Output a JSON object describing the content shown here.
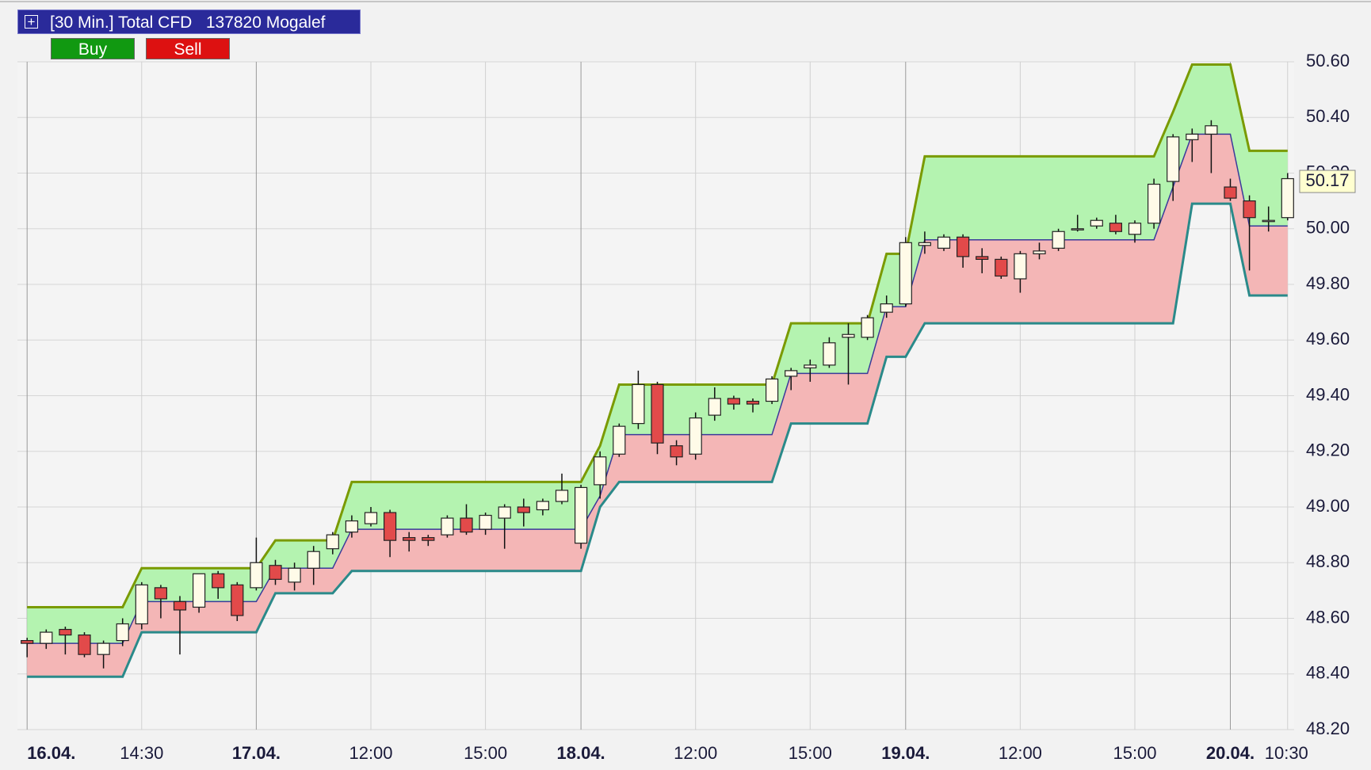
{
  "header": {
    "title": "[30 Min.] Total CFD   137820 Mogalef",
    "buy": "Buy",
    "sell": "Sell"
  },
  "chart_data": {
    "type": "candlestick",
    "categories": [
      "16.04.",
      null,
      null,
      null,
      null,
      null,
      "14:30",
      null,
      null,
      null,
      null,
      null,
      "17.04.",
      null,
      null,
      null,
      null,
      null,
      "12:00",
      null,
      null,
      null,
      null,
      null,
      "15:00",
      null,
      null,
      null,
      null,
      "18.04.",
      null,
      null,
      null,
      null,
      null,
      "12:00",
      null,
      null,
      null,
      null,
      null,
      "15:00",
      null,
      null,
      null,
      null,
      "19.04.",
      null,
      null,
      null,
      null,
      null,
      "12:00",
      null,
      null,
      null,
      null,
      null,
      "15:00",
      null,
      null,
      null,
      null,
      "20.04.",
      null,
      null,
      "10:30"
    ],
    "open": [
      48.52,
      48.51,
      48.56,
      48.54,
      48.47,
      48.52,
      48.58,
      48.71,
      48.66,
      48.64,
      48.76,
      48.72,
      48.71,
      48.79,
      48.73,
      48.78,
      48.85,
      48.91,
      48.94,
      48.98,
      48.89,
      48.89,
      48.9,
      48.96,
      48.92,
      48.96,
      49.0,
      48.99,
      49.02,
      48.87,
      49.08,
      49.19,
      49.3,
      49.44,
      49.22,
      49.19,
      49.33,
      49.39,
      49.38,
      49.38,
      49.47,
      49.5,
      49.51,
      49.61,
      49.61,
      49.7,
      49.73,
      49.94,
      49.93,
      49.97,
      49.9,
      49.89,
      49.82,
      49.91,
      49.93,
      50.0,
      50.01,
      50.02,
      49.98,
      50.02,
      50.17,
      50.32,
      50.34,
      50.15,
      50.1,
      50.03,
      50.04
    ],
    "high": [
      48.53,
      48.56,
      48.57,
      48.55,
      48.52,
      48.6,
      48.73,
      48.72,
      48.68,
      48.76,
      48.77,
      48.73,
      48.89,
      48.81,
      48.8,
      48.86,
      48.91,
      48.97,
      49.0,
      48.99,
      48.91,
      48.9,
      48.97,
      49.01,
      48.98,
      49.01,
      49.03,
      49.03,
      49.12,
      49.08,
      49.2,
      49.3,
      49.49,
      49.45,
      49.24,
      49.34,
      49.43,
      49.4,
      49.39,
      49.47,
      49.5,
      49.53,
      49.61,
      49.66,
      49.69,
      49.76,
      49.97,
      49.99,
      49.98,
      49.98,
      49.93,
      49.9,
      49.92,
      49.95,
      50.0,
      50.05,
      50.04,
      50.05,
      50.03,
      50.18,
      50.34,
      50.36,
      50.39,
      50.18,
      50.12,
      50.08,
      50.2
    ],
    "low": [
      48.46,
      48.49,
      48.47,
      48.46,
      48.42,
      48.5,
      48.56,
      48.6,
      48.47,
      48.62,
      48.67,
      48.59,
      48.7,
      48.72,
      48.7,
      48.72,
      48.83,
      48.89,
      48.93,
      48.82,
      48.84,
      48.86,
      48.89,
      48.9,
      48.9,
      48.85,
      48.93,
      48.97,
      49.01,
      48.85,
      49.03,
      49.18,
      49.28,
      49.19,
      49.15,
      49.17,
      49.31,
      49.35,
      49.34,
      49.37,
      49.42,
      49.45,
      49.5,
      49.44,
      49.6,
      49.68,
      49.72,
      49.91,
      49.92,
      49.86,
      49.84,
      49.82,
      49.77,
      49.89,
      49.92,
      49.99,
      50.0,
      49.98,
      49.95,
      50.0,
      50.1,
      50.24,
      50.2,
      50.1,
      49.85,
      49.99,
      50.03
    ],
    "close": [
      48.51,
      48.55,
      48.54,
      48.47,
      48.51,
      48.58,
      48.72,
      48.67,
      48.63,
      48.76,
      48.71,
      48.61,
      48.8,
      48.74,
      48.78,
      48.84,
      48.9,
      48.95,
      48.98,
      48.88,
      48.88,
      48.88,
      48.96,
      48.91,
      48.97,
      49.0,
      48.98,
      49.02,
      49.06,
      49.07,
      49.18,
      49.29,
      49.44,
      49.23,
      49.18,
      49.32,
      49.39,
      49.37,
      49.37,
      49.46,
      49.49,
      49.51,
      49.59,
      49.62,
      49.68,
      49.73,
      49.95,
      49.95,
      49.97,
      49.9,
      49.89,
      49.83,
      49.91,
      49.92,
      49.99,
      50.0,
      50.03,
      49.99,
      50.02,
      50.16,
      50.33,
      50.34,
      50.37,
      50.11,
      50.04,
      50.03,
      50.18
    ],
    "up_color": "#fffbe8",
    "down_color": "#e24a4a",
    "upper_band": {
      "color": "#7a9a00",
      "fill": "#b4f3b0",
      "values": [
        48.64,
        48.64,
        48.64,
        48.64,
        48.64,
        48.64,
        48.78,
        48.78,
        48.78,
        48.78,
        48.78,
        48.78,
        48.78,
        48.88,
        48.88,
        48.88,
        48.88,
        49.09,
        49.09,
        49.09,
        49.09,
        49.09,
        49.09,
        49.09,
        49.09,
        49.09,
        49.09,
        49.09,
        49.09,
        49.09,
        49.22,
        49.44,
        49.44,
        49.44,
        49.44,
        49.44,
        49.44,
        49.44,
        49.44,
        49.44,
        49.66,
        49.66,
        49.66,
        49.66,
        49.66,
        49.91,
        49.91,
        50.26,
        50.26,
        50.26,
        50.26,
        50.26,
        50.26,
        50.26,
        50.26,
        50.26,
        50.26,
        50.26,
        50.26,
        50.26,
        50.42,
        50.59,
        50.59,
        50.59,
        50.28,
        50.28,
        50.28
      ]
    },
    "middle_band": {
      "color": "#3a3a9a",
      "values": [
        48.51,
        48.51,
        48.51,
        48.51,
        48.51,
        48.51,
        48.66,
        48.66,
        48.66,
        48.66,
        48.66,
        48.66,
        48.66,
        48.78,
        48.78,
        48.78,
        48.78,
        48.92,
        48.92,
        48.92,
        48.92,
        48.92,
        48.92,
        48.92,
        48.92,
        48.92,
        48.92,
        48.92,
        48.92,
        48.92,
        49.04,
        49.26,
        49.26,
        49.26,
        49.26,
        49.26,
        49.26,
        49.26,
        49.26,
        49.26,
        49.48,
        49.48,
        49.48,
        49.48,
        49.48,
        49.72,
        49.72,
        49.96,
        49.96,
        49.96,
        49.96,
        49.96,
        49.96,
        49.96,
        49.96,
        49.96,
        49.96,
        49.96,
        49.96,
        49.96,
        50.15,
        50.34,
        50.34,
        50.34,
        50.01,
        50.01,
        50.01
      ]
    },
    "lower_band": {
      "color": "#2a8a8a",
      "fill": "#f4b6b6",
      "values": [
        48.39,
        48.39,
        48.39,
        48.39,
        48.39,
        48.39,
        48.55,
        48.55,
        48.55,
        48.55,
        48.55,
        48.55,
        48.55,
        48.69,
        48.69,
        48.69,
        48.69,
        48.77,
        48.77,
        48.77,
        48.77,
        48.77,
        48.77,
        48.77,
        48.77,
        48.77,
        48.77,
        48.77,
        48.77,
        48.77,
        49.0,
        49.09,
        49.09,
        49.09,
        49.09,
        49.09,
        49.09,
        49.09,
        49.09,
        49.09,
        49.3,
        49.3,
        49.3,
        49.3,
        49.3,
        49.54,
        49.54,
        49.66,
        49.66,
        49.66,
        49.66,
        49.66,
        49.66,
        49.66,
        49.66,
        49.66,
        49.66,
        49.66,
        49.66,
        49.66,
        49.66,
        50.09,
        50.09,
        50.09,
        49.76,
        49.76,
        49.76
      ]
    },
    "last_price": 50.17,
    "ylim": [
      48.2,
      50.6
    ],
    "yticks": [
      {
        "value": 48.2,
        "label": "48.20"
      },
      {
        "value": 48.4,
        "label": "48.40"
      },
      {
        "value": 48.6,
        "label": "48.60"
      },
      {
        "value": 48.8,
        "label": "48.80"
      },
      {
        "value": 49.0,
        "label": "49.00"
      },
      {
        "value": 49.2,
        "label": "49.20"
      },
      {
        "value": 49.4,
        "label": "49.40"
      },
      {
        "value": 49.6,
        "label": "49.60"
      },
      {
        "value": 49.8,
        "label": "49.80"
      },
      {
        "value": 50.0,
        "label": "50.00"
      },
      {
        "value": 50.2,
        "label": "50.20"
      },
      {
        "value": 50.4,
        "label": "50.40"
      },
      {
        "value": 50.6,
        "label": "50.60"
      }
    ],
    "grid": true
  }
}
